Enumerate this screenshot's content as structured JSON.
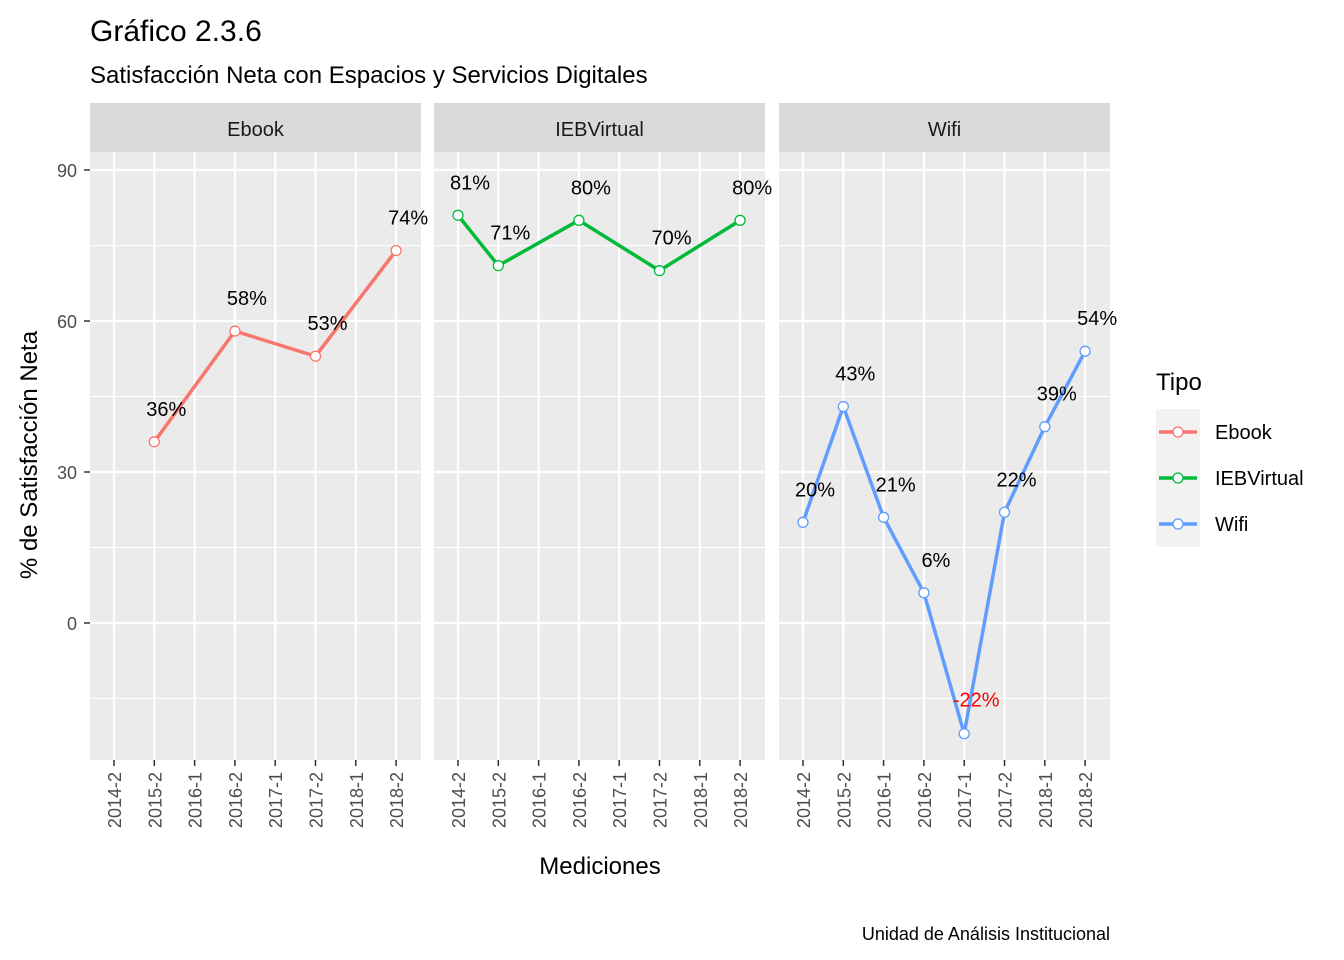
{
  "chart_data": {
    "type": "line",
    "title": "Gráfico 2.3.6",
    "subtitle": "Satisfacción Neta con Espacios y Servicios Digitales",
    "xlabel": "Mediciones",
    "ylabel": "% de Satisfacción Neta",
    "caption": "Unidad de Análisis Institucional",
    "categories": [
      "2014-2",
      "2015-2",
      "2016-1",
      "2016-2",
      "2017-1",
      "2017-2",
      "2018-1",
      "2018-2"
    ],
    "ylim": [
      -26,
      92
    ],
    "yticks": [
      0,
      30,
      60,
      90
    ],
    "grid": true,
    "legend": {
      "title": "Tipo",
      "position": "right",
      "entries": [
        "Ebook",
        "IEBVirtual",
        "Wifi"
      ]
    },
    "series": [
      {
        "name": "Ebook",
        "color": "#F8766D",
        "points": [
          {
            "x": "2015-2",
            "y": 36,
            "label": "36%"
          },
          {
            "x": "2016-2",
            "y": 58,
            "label": "58%"
          },
          {
            "x": "2017-2",
            "y": 53,
            "label": "53%"
          },
          {
            "x": "2018-2",
            "y": 74,
            "label": "74%"
          }
        ]
      },
      {
        "name": "IEBVirtual",
        "color": "#00BA38",
        "points": [
          {
            "x": "2014-2",
            "y": 81,
            "label": "81%"
          },
          {
            "x": "2015-2",
            "y": 71,
            "label": "71%"
          },
          {
            "x": "2016-2",
            "y": 80,
            "label": "80%"
          },
          {
            "x": "2017-2",
            "y": 70,
            "label": "70%"
          },
          {
            "x": "2018-2",
            "y": 80,
            "label": "80%"
          }
        ]
      },
      {
        "name": "Wifi",
        "color": "#619CFF",
        "points": [
          {
            "x": "2014-2",
            "y": 20,
            "label": "20%"
          },
          {
            "x": "2015-2",
            "y": 43,
            "label": "43%"
          },
          {
            "x": "2016-1",
            "y": 21,
            "label": "21%"
          },
          {
            "x": "2016-2",
            "y": 6,
            "label": "6%"
          },
          {
            "x": "2017-1",
            "y": -22,
            "label": "-22%"
          },
          {
            "x": "2017-2",
            "y": 22,
            "label": "22%"
          },
          {
            "x": "2018-1",
            "y": 39,
            "label": "39%"
          },
          {
            "x": "2018-2",
            "y": 54,
            "label": "54%"
          }
        ]
      }
    ],
    "negative_label_color": "#FF0000"
  }
}
